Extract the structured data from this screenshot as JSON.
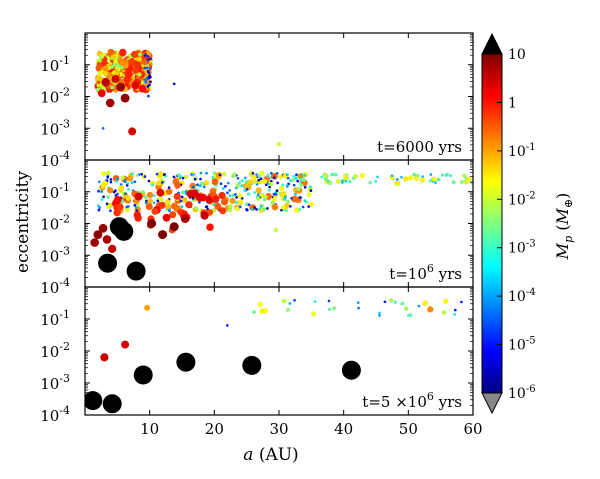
{
  "chart_data": {
    "type": "scatter",
    "xlabel_var": "a",
    "xlabel_unit": " (AU)",
    "ylabel": "eccentricity",
    "xlim": [
      0,
      60
    ],
    "ylim_log": [
      -4,
      0
    ],
    "x_ticks": [
      "10",
      "20",
      "30",
      "40",
      "50",
      "60"
    ],
    "x_tick_values": [
      10,
      20,
      30,
      40,
      50,
      60
    ],
    "y_tick_exponents": [
      "-1",
      "-2",
      "-3",
      "-4"
    ],
    "colorbar": {
      "label_var": "M",
      "label_sub": "p",
      "label_unit_open": " (",
      "label_unit_var": "M",
      "label_unit_sub": "⊕",
      "label_unit_close": ")",
      "log_range": [
        -6,
        1
      ],
      "ticks": [
        {
          "text": "10",
          "log": 1
        },
        {
          "text": "1",
          "log": 0
        },
        {
          "text": "10",
          "sup": "-1",
          "log": -1
        },
        {
          "text": "10",
          "sup": "-2",
          "log": -2
        },
        {
          "text": "10",
          "sup": "-3",
          "log": -3
        },
        {
          "text": "10",
          "sup": "-4",
          "log": -4
        },
        {
          "text": "10",
          "sup": "-5",
          "log": -5
        },
        {
          "text": "10",
          "sup": "-6",
          "log": -6
        }
      ],
      "colormap": [
        "#00007f",
        "#0000ff",
        "#007fff",
        "#00ffff",
        "#7fff7f",
        "#ffff00",
        "#ff7f00",
        "#ff0000",
        "#7f0000"
      ],
      "under_color": "#888888",
      "over_color": "#000000"
    },
    "panels": [
      {
        "time_label": "t=6000 yrs",
        "swarms": [
          {
            "x": [
              2,
              10
            ],
            "loge": [
              -1.8,
              -0.6
            ],
            "logm": [
              -2.5,
              0
            ],
            "count": 320
          },
          {
            "x": [
              9.2,
              10.2
            ],
            "loge": [
              -2.0,
              -0.6
            ],
            "logm": [
              -6,
              -4
            ],
            "count": 25
          }
        ],
        "points": [
          {
            "x": 3.2,
            "loge": -1.55,
            "logm": 0.6
          },
          {
            "x": 3.9,
            "loge": -2.2,
            "logm": 0.75
          },
          {
            "x": 5.5,
            "loge": -1.7,
            "logm": 0.85
          },
          {
            "x": 4.7,
            "loge": -1.45,
            "logm": 0.4
          },
          {
            "x": 6.2,
            "loge": -2.05,
            "logm": 0.9
          },
          {
            "x": 7.8,
            "loge": -1.65,
            "logm": 0.3
          },
          {
            "x": 7.3,
            "loge": -3.1,
            "logm": 0.4
          },
          {
            "x": 2.6,
            "loge": -1.9,
            "logm": 0.2
          },
          {
            "x": 6.8,
            "loge": -1.3,
            "logm": -0.1
          },
          {
            "x": 8.9,
            "loge": -1.75,
            "logm": 0.1
          },
          {
            "x": 13.8,
            "loge": -1.6,
            "logm": -5.5
          },
          {
            "x": 30.0,
            "loge": -3.5,
            "logm": -2.0
          },
          {
            "x": 2.8,
            "loge": -3.0,
            "logm": -4.5
          }
        ]
      },
      {
        "time_label": "t=10",
        "time_exp": "6",
        "time_unit": " yrs",
        "swarms": [
          {
            "x": [
              2,
              35
            ],
            "loge": [
              -1.6,
              -0.4
            ],
            "logm": [
              -6,
              -0.5
            ],
            "count": 420
          },
          {
            "x": [
              30,
              60
            ],
            "loge": [
              -0.75,
              -0.45
            ],
            "logm": [
              -4,
              -1.5
            ],
            "count": 70
          },
          {
            "x": [
              3,
              22
            ],
            "loge": [
              -2.3,
              -1.0
            ],
            "logm": [
              -0.5,
              0.4
            ],
            "count": 40
          }
        ],
        "points": [
          {
            "x": 1.5,
            "loge": -2.6,
            "logm": 0.8
          },
          {
            "x": 2.0,
            "loge": -2.35,
            "logm": 0.9
          },
          {
            "x": 2.8,
            "loge": -2.15,
            "logm": 0.85
          },
          {
            "x": 3.4,
            "loge": -2.5,
            "logm": 0.7
          },
          {
            "x": 10.3,
            "loge": -2.0,
            "logm": 1.0
          },
          {
            "x": 12.0,
            "loge": -2.35,
            "logm": 1.0
          },
          {
            "x": 13.8,
            "loge": -2.1,
            "logm": 1.0
          },
          {
            "x": 15.5,
            "loge": -1.85,
            "logm": 0.7
          },
          {
            "x": 18.5,
            "loge": -1.75,
            "logm": 0.5
          },
          {
            "x": 4.2,
            "loge": -2.8,
            "logm": 0.5
          },
          {
            "x": 29.5,
            "loge": -2.2,
            "logm": -2.0
          },
          {
            "x": 3.5,
            "loge": -3.25,
            "logm": 1.5
          },
          {
            "x": 5.3,
            "loge": -2.1,
            "logm": 1.5
          },
          {
            "x": 6.0,
            "loge": -2.25,
            "logm": 1.5
          },
          {
            "x": 7.9,
            "loge": -3.5,
            "logm": 1.5
          }
        ]
      },
      {
        "time_label": "t=5",
        "time_times": " ×10",
        "time_exp": "6",
        "time_unit": "  yrs",
        "swarms": [
          {
            "x": [
              26,
              60
            ],
            "loge": [
              -0.9,
              -0.4
            ],
            "logm": [
              -5,
              -1.5
            ],
            "count": 30
          }
        ],
        "points": [
          {
            "x": 3.0,
            "loge": -2.2,
            "logm": 0.5
          },
          {
            "x": 6.2,
            "loge": -1.8,
            "logm": 0.4
          },
          {
            "x": 9.6,
            "loge": -0.65,
            "logm": -1.0
          },
          {
            "x": 22.0,
            "loge": -1.2,
            "logm": -5.0
          },
          {
            "x": 27.4,
            "loge": -0.75,
            "logm": -1.5
          },
          {
            "x": 53.4,
            "loge": -0.7,
            "logm": -0.8
          },
          {
            "x": 1.2,
            "loge": -3.55,
            "logm": 1.5
          },
          {
            "x": 4.2,
            "loge": -3.65,
            "logm": 1.5
          },
          {
            "x": 9.0,
            "loge": -2.75,
            "logm": 1.5
          },
          {
            "x": 15.6,
            "loge": -2.35,
            "logm": 1.5
          },
          {
            "x": 25.8,
            "loge": -2.45,
            "logm": 1.5
          },
          {
            "x": 41.2,
            "loge": -2.6,
            "logm": 1.5
          }
        ]
      }
    ]
  }
}
